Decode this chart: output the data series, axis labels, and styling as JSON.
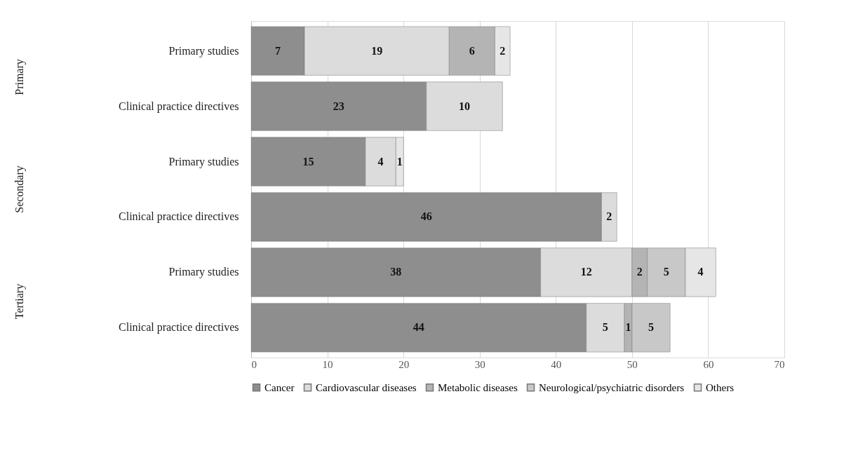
{
  "chart_data": {
    "type": "bar",
    "orientation": "horizontal",
    "stacked": true,
    "categories": [
      "Primary studies",
      "Clinical practice directives",
      "Primary studies",
      "Clinical practice directives",
      "Primary studies",
      "Clinical practice directives"
    ],
    "series": [
      {
        "name": "Cancer",
        "color": "#8e8e8e",
        "values": [
          7,
          23,
          15,
          46,
          38,
          44
        ]
      },
      {
        "name": "Cardiovascular diseases",
        "color": "#dcdcdc",
        "values": [
          19,
          10,
          4,
          2,
          12,
          5
        ]
      },
      {
        "name": "Metabolic diseases",
        "color": "#b4b4b4",
        "values": [
          6,
          null,
          null,
          null,
          2,
          1
        ]
      },
      {
        "name": "Neurological/psychiatric disorders",
        "color": "#c8c8c8",
        "values": [
          null,
          null,
          null,
          null,
          5,
          5
        ]
      },
      {
        "name": "Others",
        "color": "#e6e6e6",
        "values": [
          2,
          null,
          1,
          null,
          4,
          null
        ]
      }
    ],
    "annotations": [
      "Primary",
      "Secondary",
      "Tertiary"
    ],
    "xlim": [
      0,
      70
    ],
    "xticks": [
      0,
      10,
      20,
      30,
      40,
      50,
      60,
      70
    ],
    "grid": "x",
    "legend": "bottom",
    "data_labels": true
  }
}
